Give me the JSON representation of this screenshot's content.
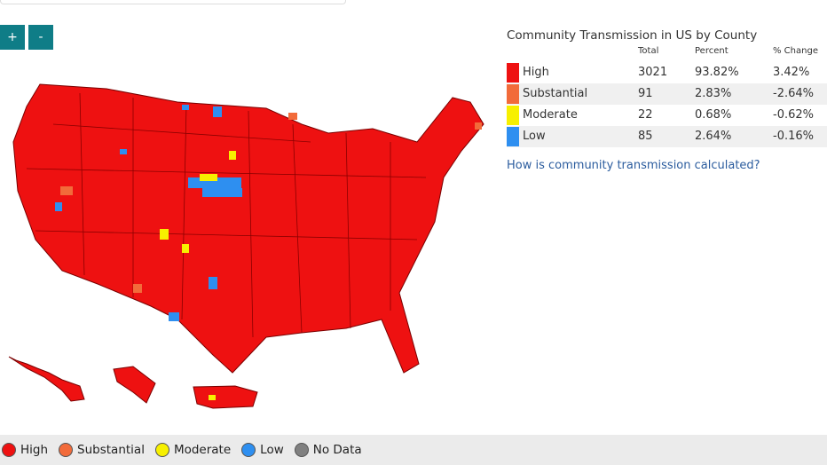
{
  "zoom": {
    "in": "+",
    "out": "-"
  },
  "table": {
    "title": "Community Transmission in US by County",
    "columns": [
      "Total",
      "Percent",
      "% Change"
    ],
    "rows": [
      {
        "label": "High",
        "total": "3021",
        "percent": "93.82%",
        "change": "3.42%",
        "color": "#ee1111"
      },
      {
        "label": "Substantial",
        "total": "91",
        "percent": "2.83%",
        "change": "-2.64%",
        "color": "#f26b3a"
      },
      {
        "label": "Moderate",
        "total": "22",
        "percent": "0.68%",
        "change": "-0.62%",
        "color": "#f7f000"
      },
      {
        "label": "Low",
        "total": "85",
        "percent": "2.64%",
        "change": "-0.16%",
        "color": "#2e8ff0"
      }
    ]
  },
  "link": "How is community transmission calculated?",
  "legend": [
    {
      "label": "High",
      "color": "#ee1111"
    },
    {
      "label": "Substantial",
      "color": "#f26b3a"
    },
    {
      "label": "Moderate",
      "color": "#f7f000"
    },
    {
      "label": "Low",
      "color": "#2e8ff0"
    },
    {
      "label": "No Data",
      "color": "#808080"
    }
  ]
}
